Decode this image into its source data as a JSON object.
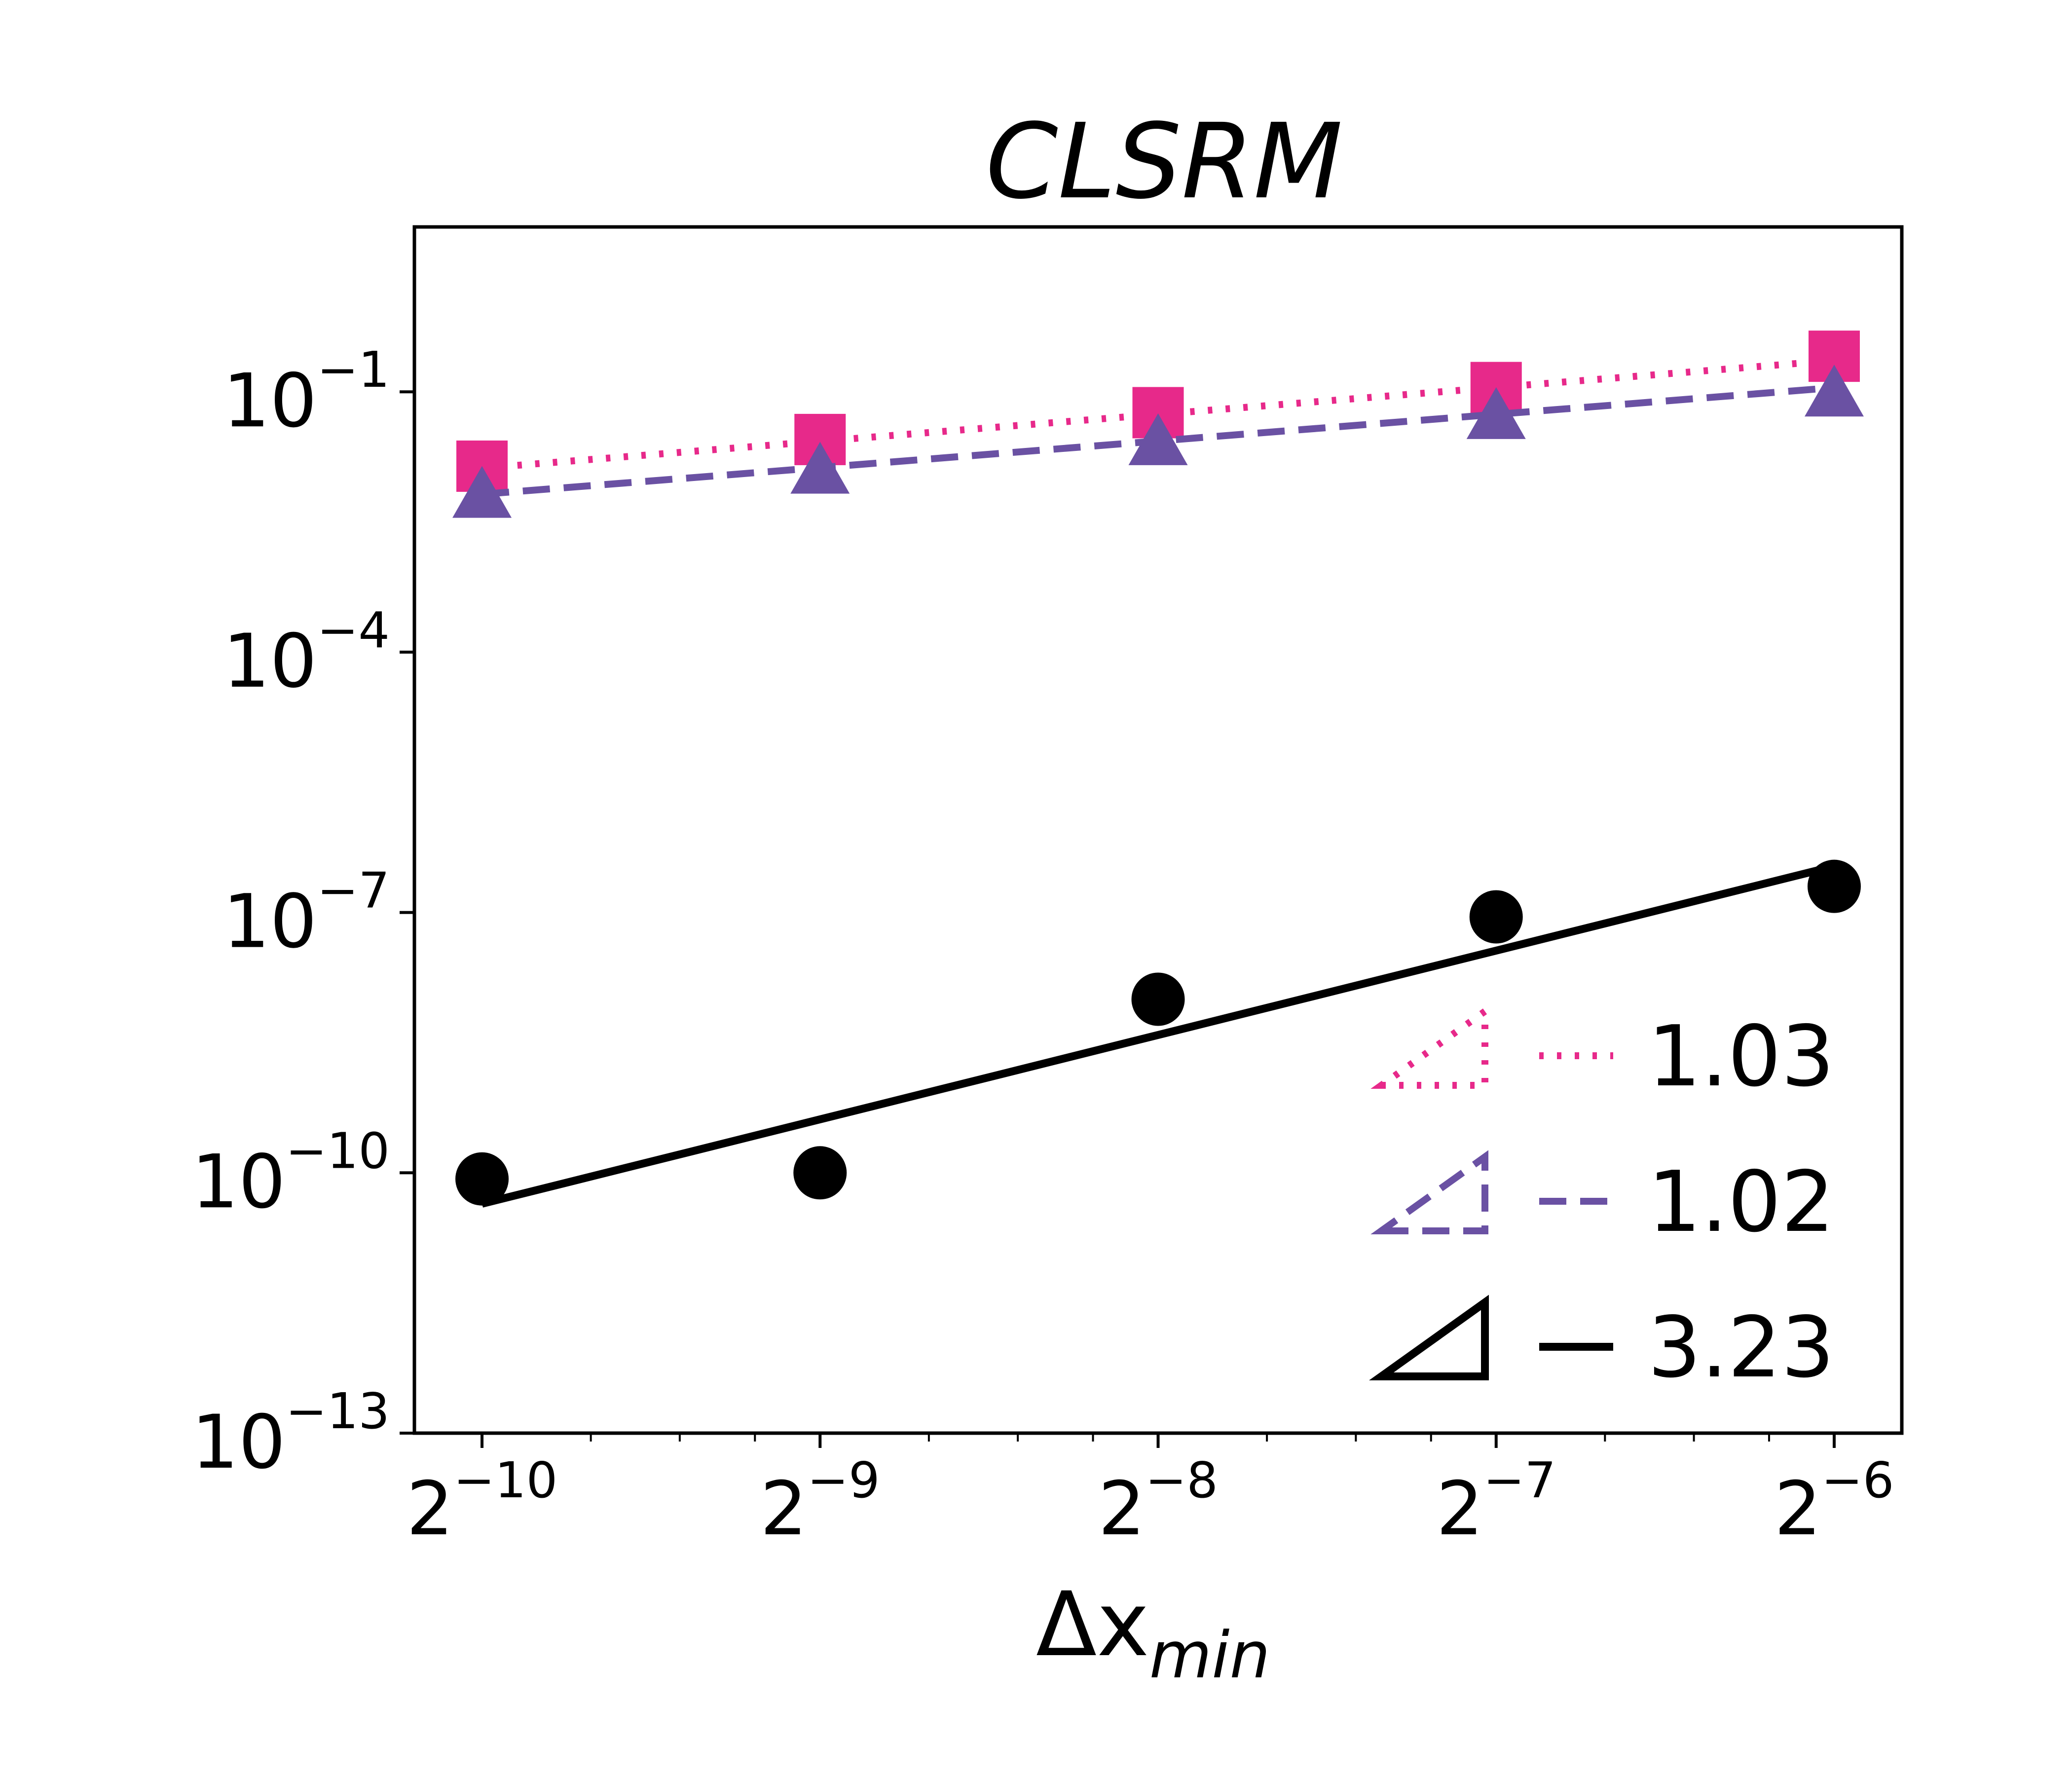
{
  "chart_data": {
    "type": "line",
    "scale": {
      "x": "log2",
      "y": "log10"
    },
    "title": "CLSRM",
    "xlabel": "Δx",
    "xlabel_subscript": "min",
    "ylabel": "",
    "xlim_log2": [
      -10.2,
      -5.8
    ],
    "ylim_log10": [
      -13,
      0.9
    ],
    "x_ticks": [
      {
        "base": "2",
        "exp": "−10",
        "log2": -10
      },
      {
        "base": "2",
        "exp": "−9",
        "log2": -9
      },
      {
        "base": "2",
        "exp": "−8",
        "log2": -8
      },
      {
        "base": "2",
        "exp": "−7",
        "log2": -7
      },
      {
        "base": "2",
        "exp": "−6",
        "log2": -6
      }
    ],
    "y_ticks": [
      {
        "base": "10",
        "exp": "−1",
        "log10": -1
      },
      {
        "base": "10",
        "exp": "−4",
        "log10": -4
      },
      {
        "base": "10",
        "exp": "−7",
        "log10": -7
      },
      {
        "base": "10",
        "exp": "−10",
        "log10": -10
      },
      {
        "base": "10",
        "exp": "−13",
        "log10": -13
      }
    ],
    "series": [
      {
        "name": "pink",
        "color": "#e7298a",
        "marker": "square",
        "line_style": "dotted",
        "x": [
          0.0009765625,
          0.001953125,
          0.00390625,
          0.0078125,
          0.015625
        ],
        "y": [
          0.0139,
          0.0282,
          0.0575,
          0.112,
          0.257
        ],
        "fit": {
          "slope": 1.03,
          "y_at_xmin": 0.0132
        }
      },
      {
        "name": "purple",
        "color": "#6a51a3",
        "marker": "triangle",
        "line_style": "dashed",
        "x": [
          0.0009765625,
          0.001953125,
          0.00390625,
          0.0078125,
          0.015625
        ],
        "y": [
          0.0068,
          0.0129,
          0.0275,
          0.055,
          0.1
        ],
        "fit": {
          "slope": 1.02,
          "y_at_xmin": 0.0066
        }
      },
      {
        "name": "black",
        "color": "#000000",
        "marker": "circle",
        "line_style": "solid",
        "x": [
          0.0009765625,
          0.001953125,
          0.00390625,
          0.0078125,
          0.015625
        ],
        "y": [
          8.5e-11,
          1e-10,
          1e-08,
          8.9e-08,
          2e-07
        ],
        "fit": {
          "slope": 3.23,
          "y_at_xmin": 4.4e-11
        }
      }
    ],
    "slope_legend": [
      {
        "series": "pink",
        "label": "1.03"
      },
      {
        "series": "purple",
        "label": "1.02"
      },
      {
        "series": "black",
        "label": "3.23"
      }
    ]
  }
}
